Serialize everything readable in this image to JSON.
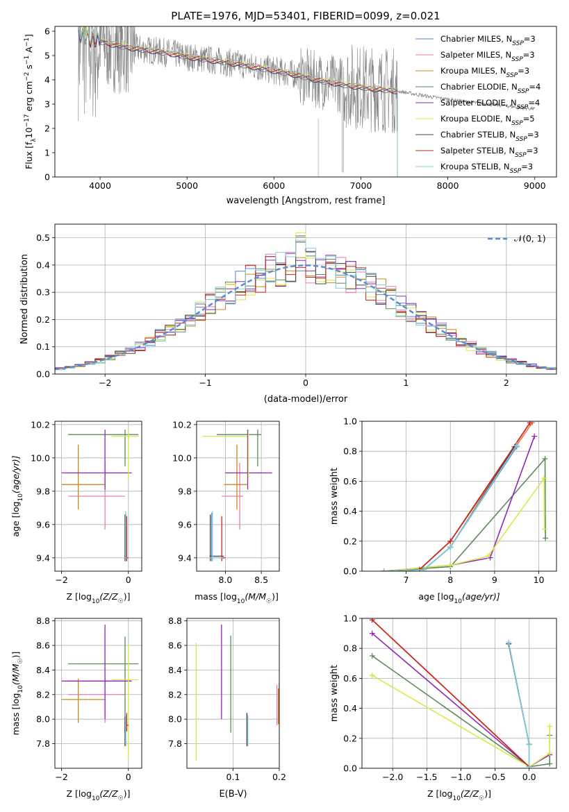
{
  "title": "PLATE=1976, MJD=53401, FIBERID=0099, z=0.021",
  "colors": {
    "Chabrier MILES": "#5b7fd6",
    "Salpeter MILES": "#e67bb6",
    "Kroupa MILES": "#c98a1a",
    "Chabrier ELODIE": "#5a8a5a",
    "Salpeter ELODIE": "#9026b8",
    "Kroupa ELODIE": "#d7e84a",
    "Chabrier STELIB": "#444444",
    "Salpeter STELIB": "#c8231c",
    "Kroupa STELIB": "#7ccfd6",
    "data": "#808080",
    "model_main": "#ee7733"
  },
  "chart_data": [
    {
      "id": "spectrum",
      "type": "line",
      "xlabel": "wavelength [Angstrom, rest frame]",
      "ylabel_main": "Flux [f",
      "ylabel_lambda": "λ",
      "ylabel_rest": "10",
      "ylabel_exp1": "−17",
      "ylabel_mid": " erg cm",
      "ylabel_exp2": "−2",
      "ylabel_mid2": " s",
      "ylabel_exp3": "−1",
      "ylabel_mid3": " A",
      "ylabel_exp4": "−1",
      "ylabel_end": "]",
      "xlim": [
        3480,
        9250
      ],
      "ylim": [
        0,
        6.2
      ],
      "xticks": [
        4000,
        5000,
        6000,
        7000,
        8000,
        9000
      ],
      "yticks": [
        0,
        1,
        2,
        3,
        4,
        5,
        6
      ],
      "legend_position": "top-right",
      "legend": [
        {
          "model": "Chabrier MILES",
          "nssp": "3"
        },
        {
          "model": "Salpeter MILES",
          "nssp": "3"
        },
        {
          "model": "Kroupa MILES",
          "nssp": "3"
        },
        {
          "model": "Chabrier ELODIE",
          "nssp": "4"
        },
        {
          "model": "Salpeter ELODIE",
          "nssp": "4"
        },
        {
          "model": "Kroupa ELODIE",
          "nssp": "5"
        },
        {
          "model": "Chabrier STELIB",
          "nssp": "3"
        },
        {
          "model": "Salpeter STELIB",
          "nssp": "3"
        },
        {
          "model": "Kroupa STELIB",
          "nssp": "3"
        }
      ],
      "nssp_label": "N",
      "nssp_sub": "SSP",
      "continuum": [
        [
          3750,
          5.9
        ],
        [
          3900,
          5.7
        ],
        [
          4100,
          5.5
        ],
        [
          4300,
          5.35
        ],
        [
          4500,
          5.25
        ],
        [
          4800,
          5.1
        ],
        [
          5000,
          4.95
        ],
        [
          5300,
          4.8
        ],
        [
          5600,
          4.65
        ],
        [
          5900,
          4.45
        ],
        [
          6200,
          4.25
        ],
        [
          6500,
          4.0
        ],
        [
          6800,
          3.8
        ],
        [
          7100,
          3.65
        ],
        [
          7400,
          3.55
        ],
        [
          7800,
          3.3
        ],
        [
          8200,
          3.1
        ],
        [
          8600,
          2.95
        ],
        [
          9000,
          2.8
        ]
      ],
      "model_end": 7420,
      "data_end": 7420,
      "tail_end": 9000
    },
    {
      "id": "residuals",
      "type": "step-histogram",
      "xlabel": "(data-model)/error",
      "ylabel": "Normed distribution",
      "xlim": [
        -2.5,
        2.5
      ],
      "ylim": [
        0,
        0.55
      ],
      "xticks": [
        -2,
        -1,
        0,
        1,
        2
      ],
      "xtick_labels": [
        "−2",
        "−1",
        "0",
        "1",
        "2"
      ],
      "yticks": [
        0.0,
        0.1,
        0.2,
        0.3,
        0.4,
        0.5
      ],
      "legend_label": "𝒩(0, 1)",
      "bin_width": 0.1
    },
    {
      "id": "age_vs_Z",
      "type": "errorbar",
      "xlabel_main": "Z [log",
      "xlabel_sub": "10",
      "xlabel_rest": "(Z/Z",
      "xlabel_sun": "☉",
      "xlabel_end": ")]",
      "ylabel_main": "age  [log",
      "ylabel_sub": "10",
      "ylabel_rest": "(age/yr)]",
      "xlim": [
        -2.2,
        0.4
      ],
      "ylim": [
        9.32,
        10.22
      ],
      "xticks": [
        -2,
        0
      ],
      "xtick_labels": [
        "−2",
        "0"
      ],
      "yticks": [
        9.4,
        9.6,
        9.8,
        10.0,
        10.2
      ],
      "ytick_labels": [
        "9.4",
        "9.6",
        "9.8",
        "10.0",
        "10.2"
      ]
    },
    {
      "id": "age_vs_mass",
      "type": "errorbar",
      "xlabel_main": "mass [log",
      "xlabel_sub": "10",
      "xlabel_rest": "(M/M",
      "xlabel_sun": "☉",
      "xlabel_end": ")]",
      "xlim": [
        7.6,
        8.75
      ],
      "ylim": [
        9.32,
        10.22
      ],
      "xticks": [
        8.0,
        8.5
      ],
      "xtick_labels": [
        "8.0",
        "8.5"
      ],
      "yticks": [
        9.4,
        9.6,
        9.8,
        10.0,
        10.2
      ],
      "ytick_labels": [
        "9.4",
        "9.6",
        "9.8",
        "10.0",
        "10.2"
      ]
    },
    {
      "id": "massweight_vs_age",
      "type": "line",
      "xlabel_main": "age  [log",
      "xlabel_sub": "10",
      "xlabel_rest": "(age/yr)]",
      "ylabel": "mass weight",
      "xlim": [
        6.0,
        10.4
      ],
      "ylim": [
        0,
        1.0
      ],
      "xticks": [
        7,
        8,
        9,
        10
      ],
      "xtick_labels": [
        "7",
        "8",
        "9",
        "10"
      ],
      "yticks": [
        0.0,
        0.2,
        0.4,
        0.6,
        0.8,
        1.0
      ],
      "ytick_labels": [
        "0.0",
        "0.2",
        "0.4",
        "0.6",
        "0.8",
        "1.0"
      ],
      "series": [
        {
          "model": "Chabrier MILES",
          "x": [
            6.5,
            7.4,
            8.0,
            9.5
          ],
          "y": [
            0.0,
            0.01,
            0.16,
            0.83
          ]
        },
        {
          "model": "Salpeter MILES",
          "x": [
            6.5,
            7.3,
            8.0,
            9.8
          ],
          "y": [
            0.0,
            0.01,
            0.2,
            0.99
          ]
        },
        {
          "model": "Kroupa MILES",
          "x": [
            6.5,
            7.3,
            8.0,
            9.85
          ],
          "y": [
            0.0,
            0.01,
            0.2,
            0.99
          ]
        },
        {
          "model": "Chabrier ELODIE",
          "x": [
            6.5,
            8.0,
            10.14,
            10.15
          ],
          "y": [
            0.0,
            0.03,
            0.75,
            0.22
          ]
        },
        {
          "model": "Salpeter ELODIE",
          "x": [
            6.5,
            8.0,
            8.9,
            9.9
          ],
          "y": [
            0.0,
            0.04,
            0.09,
            0.9
          ]
        },
        {
          "model": "Kroupa ELODIE",
          "x": [
            6.5,
            8.0,
            8.85,
            10.12,
            10.13
          ],
          "y": [
            0.0,
            0.04,
            0.1,
            0.62,
            0.28
          ]
        },
        {
          "model": "Chabrier STELIB",
          "x": [
            6.5,
            7.4,
            8.0,
            9.45
          ],
          "y": [
            0.0,
            0.01,
            0.16,
            0.83
          ]
        },
        {
          "model": "Salpeter STELIB",
          "x": [
            6.5,
            7.3,
            8.0,
            9.8
          ],
          "y": [
            0.0,
            0.01,
            0.2,
            0.99
          ]
        },
        {
          "model": "Kroupa STELIB",
          "x": [
            6.5,
            7.4,
            8.0,
            9.5
          ],
          "y": [
            0.0,
            0.01,
            0.16,
            0.84
          ]
        }
      ]
    },
    {
      "id": "mass_vs_Z",
      "type": "errorbar",
      "xlabel_main": "Z [log",
      "xlabel_sub": "10",
      "xlabel_rest": "(Z/Z",
      "xlabel_sun": "☉",
      "xlabel_end": ")]",
      "ylabel_main": "mass [log",
      "ylabel_sub": "10",
      "ylabel_rest": "(M/M",
      "ylabel_sun": "☉",
      "ylabel_end": ")]",
      "xlim": [
        -2.2,
        0.4
      ],
      "ylim": [
        7.6,
        8.82
      ],
      "xticks": [
        -2,
        0
      ],
      "xtick_labels": [
        "−2",
        "0"
      ],
      "yticks": [
        7.8,
        8.0,
        8.2,
        8.4,
        8.6,
        8.8
      ],
      "ytick_labels": [
        "7.8",
        "8.0",
        "8.2",
        "8.4",
        "8.6",
        "8.8"
      ]
    },
    {
      "id": "mass_vs_ebv",
      "type": "errorbar",
      "xlabel": "E(B-V)",
      "xlim": [
        0.0,
        0.2
      ],
      "ylim": [
        7.6,
        8.82
      ],
      "xticks": [
        0.1,
        0.2
      ],
      "xtick_labels": [
        "0.1",
        "0.2"
      ],
      "yticks": [
        7.8,
        8.0,
        8.2,
        8.4,
        8.6,
        8.8
      ],
      "ytick_labels": [
        "7.8",
        "8.0",
        "8.2",
        "8.4",
        "8.6",
        "8.8"
      ]
    },
    {
      "id": "massweight_vs_Z",
      "type": "line",
      "xlabel_main": "Z [log",
      "xlabel_sub": "10",
      "xlabel_rest": "(Z/Z",
      "xlabel_sun": "☉",
      "xlabel_end": ")]",
      "ylabel": "mass weight",
      "xlim": [
        -2.45,
        0.4
      ],
      "ylim": [
        0,
        1.0
      ],
      "xticks": [
        -2.0,
        -1.5,
        -1.0,
        -0.5,
        0.0
      ],
      "xtick_labels": [
        "−2.0",
        "−1.5",
        "−1.0",
        "−0.5",
        "0.0"
      ],
      "yticks": [
        0.0,
        0.2,
        0.4,
        0.6,
        0.8,
        1.0
      ],
      "ytick_labels": [
        "0.0",
        "0.2",
        "0.4",
        "0.6",
        "0.8",
        "1.0"
      ],
      "series": [
        {
          "model": "Chabrier MILES",
          "x": [
            -0.3,
            0.0,
            0.0
          ],
          "y": [
            0.83,
            0.16,
            0.01
          ]
        },
        {
          "model": "Salpeter MILES",
          "x": [
            -2.3,
            0.0
          ],
          "y": [
            0.99,
            0.01
          ]
        },
        {
          "model": "Kroupa MILES",
          "x": [
            -2.3,
            0.0
          ],
          "y": [
            0.99,
            0.01
          ]
        },
        {
          "model": "Chabrier ELODIE",
          "x": [
            -2.3,
            0.0,
            0.3,
            0.3
          ],
          "y": [
            0.75,
            0.01,
            0.03,
            0.22
          ]
        },
        {
          "model": "Salpeter ELODIE",
          "x": [
            -2.3,
            0.0,
            0.3
          ],
          "y": [
            0.9,
            0.01,
            0.09
          ]
        },
        {
          "model": "Kroupa ELODIE",
          "x": [
            -2.3,
            0.0,
            0.3,
            0.3
          ],
          "y": [
            0.62,
            0.01,
            0.1,
            0.28
          ]
        },
        {
          "model": "Chabrier STELIB",
          "x": [
            -0.3,
            0.0,
            0.0
          ],
          "y": [
            0.83,
            0.16,
            0.01
          ]
        },
        {
          "model": "Salpeter STELIB",
          "x": [
            -2.3,
            0.0
          ],
          "y": [
            0.99,
            0.01
          ]
        },
        {
          "model": "Kroupa STELIB",
          "x": [
            -0.3,
            0.0,
            0.0
          ],
          "y": [
            0.84,
            0.16,
            0.01
          ]
        }
      ]
    }
  ],
  "errorbars": [
    {
      "model": "Chabrier MILES",
      "Z": -0.08,
      "Zerr": [
        -0.1,
        -0.06
      ],
      "age": 9.4,
      "ageerr": [
        9.38,
        9.67
      ],
      "mass": 7.81,
      "masserr": [
        7.78,
        8.02
      ],
      "massx": [
        7.78,
        7.95
      ],
      "ebv": 0.13,
      "ebverr": [
        7.78,
        8.05
      ]
    },
    {
      "model": "Salpeter MILES",
      "Z": -0.7,
      "Zerr": [
        -1.8,
        -0.1
      ],
      "age": 9.77,
      "ageerr": [
        9.57,
        9.97
      ],
      "mass": 8.2,
      "masserr": [
        7.97,
        8.35
      ],
      "massx": [
        7.95,
        8.25
      ],
      "ebv": 0.195,
      "ebverr": [
        7.95,
        8.28
      ]
    },
    {
      "model": "Kroupa MILES",
      "Z": -1.5,
      "Zerr": [
        -2.0,
        -0.7
      ],
      "age": 9.84,
      "ageerr": [
        9.69,
        10.08
      ],
      "mass": 8.16,
      "masserr": [
        7.97,
        8.33
      ],
      "massx": [
        7.98,
        8.3
      ],
      "ebv": 0.198,
      "ebverr": [
        7.96,
        8.25
      ]
    },
    {
      "model": "Chabrier ELODIE",
      "Z": -0.1,
      "Zerr": [
        -1.8,
        0.3
      ],
      "age": 10.14,
      "ageerr": [
        9.95,
        10.17
      ],
      "mass": 8.45,
      "masserr": [
        7.89,
        8.67
      ],
      "massx": [
        7.88,
        8.5
      ],
      "ebv": 0.095,
      "ebverr": [
        7.89,
        8.68
      ]
    },
    {
      "model": "Salpeter ELODIE",
      "Z": -0.7,
      "Zerr": [
        -2.0,
        0.1
      ],
      "age": 9.91,
      "ageerr": [
        9.81,
        10.17
      ],
      "mass": 8.31,
      "masserr": [
        8.0,
        8.77
      ],
      "massx": [
        8.0,
        8.65
      ],
      "ebv": 0.075,
      "ebverr": [
        8.0,
        8.77
      ]
    },
    {
      "model": "Kroupa ELODIE",
      "Z": 0.0,
      "Zerr": [
        -0.5,
        0.3
      ],
      "age": 10.13,
      "ageerr": [
        9.87,
        10.17
      ],
      "mass": 8.32,
      "masserr": [
        7.66,
        8.61
      ],
      "massx": [
        7.68,
        8.3
      ],
      "ebv": 0.02,
      "ebverr": [
        7.66,
        8.62
      ]
    },
    {
      "model": "Chabrier STELIB",
      "Z": -0.1,
      "Zerr": [
        -0.12,
        -0.08
      ],
      "age": 9.41,
      "ageerr": [
        9.38,
        9.66
      ],
      "mass": 7.79,
      "masserr": [
        7.78,
        8.02
      ],
      "massx": [
        7.78,
        7.98
      ],
      "ebv": 0.13,
      "ebverr": [
        7.78,
        8.05
      ]
    },
    {
      "model": "Salpeter STELIB",
      "Z": -0.05,
      "Zerr": [
        -0.1,
        0.0
      ],
      "age": 9.4,
      "ageerr": [
        9.38,
        9.65
      ],
      "mass": 7.95,
      "masserr": [
        7.9,
        8.05
      ],
      "massx": [
        7.9,
        8.0
      ],
      "ebv": 0.2,
      "ebverr": [
        7.95,
        8.3
      ]
    },
    {
      "model": "Kroupa STELIB",
      "Z": -0.08,
      "Zerr": [
        -0.1,
        -0.05
      ],
      "age": 9.4,
      "ageerr": [
        9.38,
        9.68
      ],
      "mass": 7.82,
      "masserr": [
        7.78,
        8.03
      ],
      "massx": [
        7.78,
        7.96
      ],
      "ebv": 0.132,
      "ebverr": [
        7.78,
        8.03
      ]
    }
  ]
}
